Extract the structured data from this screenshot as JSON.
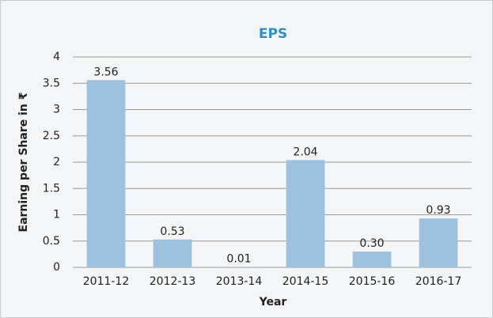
{
  "chart_data": {
    "type": "bar",
    "title": "EPS",
    "x_label": "Year",
    "y_label": "Earning per Share in ₹",
    "categories": [
      "2011-12",
      "2012-13",
      "2013-14",
      "2014-15",
      "2015-16",
      "2016-17"
    ],
    "values": [
      3.56,
      0.53,
      0.01,
      2.04,
      0.3,
      0.93
    ],
    "value_labels": [
      "3.56",
      "0.53",
      "0.01",
      "2.04",
      "0.30",
      "0.93"
    ],
    "color": "#9cc2df",
    "ylim": [
      0,
      4
    ],
    "yticks": [
      0,
      0.5,
      1,
      1.5,
      2,
      2.5,
      3,
      3.5,
      4
    ],
    "grid": true
  }
}
